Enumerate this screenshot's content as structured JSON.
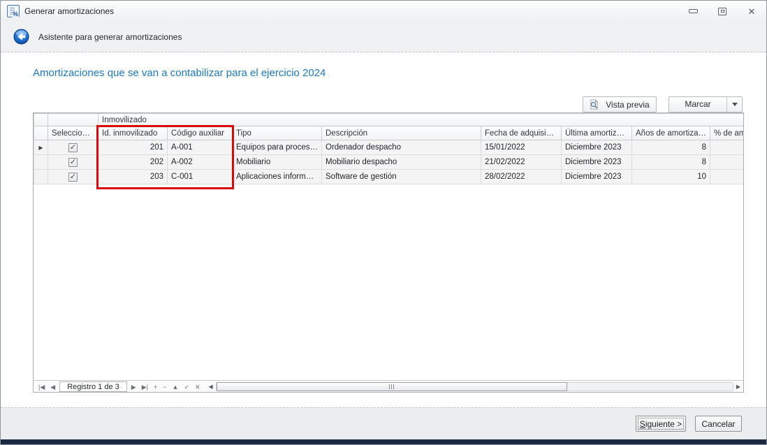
{
  "window": {
    "title": "Generar amortizaciones",
    "icon": "percent-document-icon",
    "controls": [
      "minimize-icon",
      "restore-icon",
      "close-icon"
    ],
    "close_glyph": "✕"
  },
  "header": {
    "back_icon": "back-arrow-icon",
    "title": "Asistente para generar amortizaciones"
  },
  "main": {
    "heading": "Amortizaciones que se van a contabilizar para el ejercicio 2024",
    "toolbar": {
      "vista_previa_label": "Vista previa",
      "vista_previa_icon": "preview-magnifier-icon",
      "marcar_label": "Marcar",
      "marcar_dropdown_icon": "chevron-down-icon"
    }
  },
  "grid": {
    "band_label": "Inmovilizado",
    "columns": [
      "Seleccionado",
      "Id. inmovilizado",
      "Código auxiliar",
      "Tipo",
      "Descripción",
      "Fecha de adquisición",
      "Última amortización",
      "Años de amortización",
      "% de amo"
    ],
    "rows": [
      {
        "current": true,
        "seleccionado": true,
        "id": "201",
        "codigo": "A-001",
        "tipo": "Equipos para procesos ...",
        "descripcion": "Ordenador despacho",
        "fecha": "15/01/2022",
        "ultima": "Diciembre 2023",
        "anos": "8",
        "pct": ""
      },
      {
        "current": false,
        "seleccionado": true,
        "id": "202",
        "codigo": "A-002",
        "tipo": "Mobiliario",
        "descripcion": "Mobiliario despacho",
        "fecha": "21/02/2022",
        "ultima": "Diciembre 2023",
        "anos": "8",
        "pct": ""
      },
      {
        "current": false,
        "seleccionado": true,
        "id": "203",
        "codigo": "C-001",
        "tipo": "Aplicaciones informáticas",
        "descripcion": "Software de gestión",
        "fecha": "28/02/2022",
        "ultima": "Diciembre 2023",
        "anos": "10",
        "pct": ""
      }
    ],
    "highlight_box": "red-highlight-rectangle"
  },
  "navigator": {
    "record_label": "Registro 1 de 3",
    "buttons_left": [
      {
        "name": "nav-first-button",
        "glyph": "|◀"
      },
      {
        "name": "nav-prev-button",
        "glyph": "◀"
      }
    ],
    "buttons_right": [
      {
        "name": "nav-next-button",
        "glyph": "▶"
      },
      {
        "name": "nav-last-button",
        "glyph": "▶|"
      },
      {
        "name": "nav-append-button",
        "glyph": "+"
      },
      {
        "name": "nav-delete-button",
        "glyph": "−"
      },
      {
        "name": "nav-edit-button",
        "glyph": "▲"
      },
      {
        "name": "nav-post-button",
        "glyph": "✓"
      },
      {
        "name": "nav-cancel-button",
        "glyph": "✕"
      }
    ],
    "scroll_left_glyph": "◀",
    "scroll_right_glyph": "▶"
  },
  "footer": {
    "siguiente_accesskey": "S",
    "siguiente_rest": "iguiente >",
    "cancelar_label": "Cancelar"
  },
  "icons": {
    "current_row": "▶",
    "checkbox_check": "✓"
  },
  "colors": {
    "heading_blue": "#2079c0",
    "highlight_red": "#dc0b0b",
    "accent_navy": "#1b2940",
    "back_button_blue": "#1d6fd0"
  }
}
